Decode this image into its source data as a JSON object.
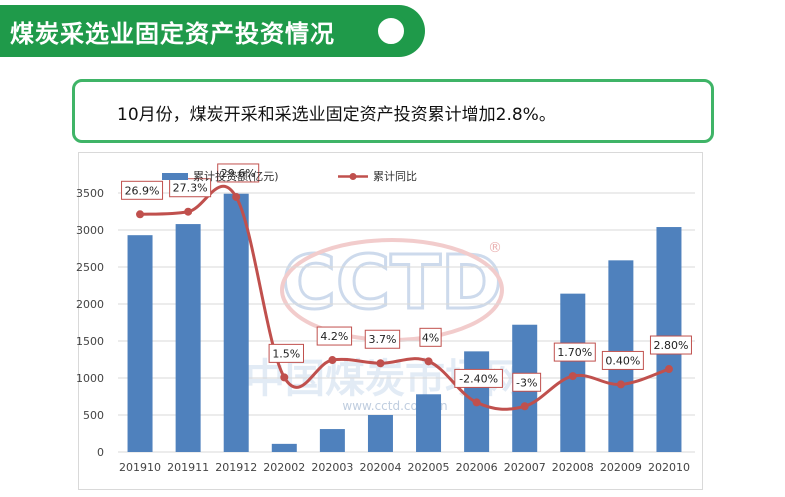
{
  "banner": {
    "title": "煤炭采选业固定资产投资情况"
  },
  "note": {
    "text": "10月份，煤炭开采和采选业固定资产投资累计增加2.8%。"
  },
  "watermark": {
    "logo": "CCTD",
    "registered": "®",
    "cn_name": "中国煤炭市场网",
    "url": "www.cctd.com.cn"
  },
  "colors": {
    "banner": "#1f9a4a",
    "note_border": "#3fb467",
    "bar": "#4f81bd",
    "line": "#c0504d"
  },
  "chart_data": {
    "type": "bar",
    "categories": [
      "201910",
      "201911",
      "201912",
      "202002",
      "202003",
      "202004",
      "202005",
      "202006",
      "202007",
      "202008",
      "202009",
      "202010"
    ],
    "series": [
      {
        "name": "累计投资额(亿元)",
        "type": "bar",
        "axis": "left",
        "values": [
          2930,
          3080,
          3490,
          110,
          310,
          500,
          780,
          1360,
          1720,
          2140,
          2590,
          3040
        ]
      },
      {
        "name": "累计同比",
        "type": "line",
        "axis": "right",
        "values": [
          26.9,
          27.3,
          29.6,
          1.5,
          4.2,
          3.7,
          4.0,
          -2.4,
          -3.0,
          1.7,
          0.4,
          2.8
        ],
        "labels": [
          "26.9%",
          "27.3%",
          "29.6%",
          "1.5%",
          "4.2%",
          "3.7%",
          "4%",
          "-2.40%",
          "-3%",
          "1.70%",
          "0.40%",
          "2.80%"
        ]
      }
    ],
    "y_ticks": [
      "0",
      "500",
      "1000",
      "1500",
      "2000",
      "2500",
      "3000",
      "3500"
    ],
    "ylim": [
      0,
      3500
    ],
    "legend_position": "top-left",
    "grid": true
  }
}
